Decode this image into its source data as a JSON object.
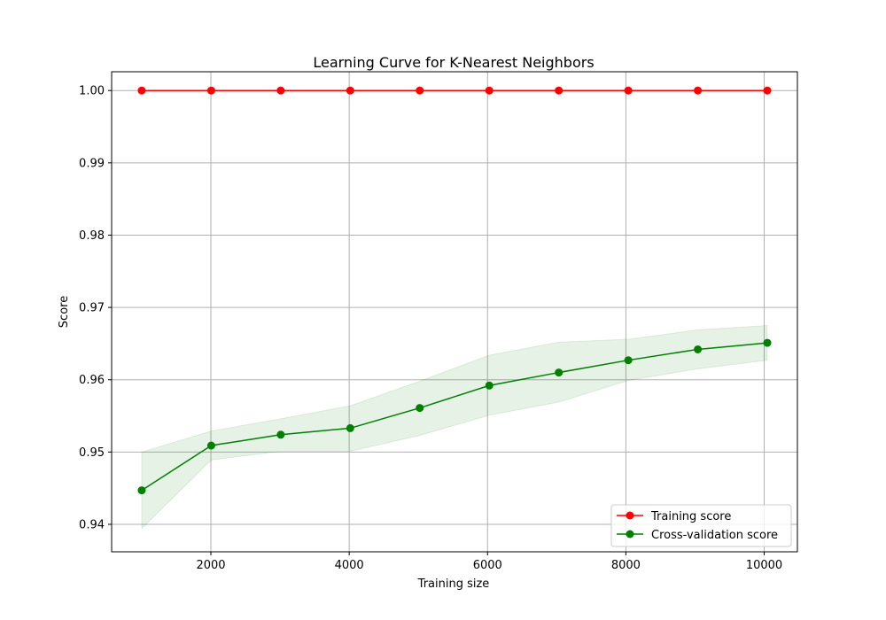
{
  "chart_data": {
    "type": "line",
    "title": "Learning Curve for K-Nearest Neighbors",
    "xlabel": "Training size",
    "ylabel": "Score",
    "x": [
      1000,
      2005,
      3010,
      4015,
      5020,
      6025,
      7030,
      8035,
      9040,
      10045
    ],
    "xlim": [
      565,
      10480
    ],
    "ylim": [
      0.9362,
      1.0026
    ],
    "xticks": [
      2000,
      4000,
      6000,
      8000,
      10000
    ],
    "xtick_labels": [
      "2000",
      "4000",
      "6000",
      "8000",
      "10000"
    ],
    "yticks": [
      0.94,
      0.95,
      0.96,
      0.97,
      0.98,
      0.99,
      1.0
    ],
    "ytick_labels": [
      "0.94",
      "0.95",
      "0.96",
      "0.97",
      "0.98",
      "0.99",
      "1.00"
    ],
    "grid": true,
    "legend_position": "bottom-right",
    "series": [
      {
        "name": "Training score",
        "color": "#ff0000",
        "marker": "circle",
        "values": [
          1.0,
          1.0,
          1.0,
          1.0,
          1.0,
          1.0,
          1.0,
          1.0,
          1.0,
          1.0
        ],
        "band_lower": [
          1.0,
          1.0,
          1.0,
          1.0,
          1.0,
          1.0,
          1.0,
          1.0,
          1.0,
          1.0
        ],
        "band_upper": [
          1.0,
          1.0,
          1.0,
          1.0,
          1.0,
          1.0,
          1.0,
          1.0,
          1.0,
          1.0
        ]
      },
      {
        "name": "Cross-validation score",
        "color": "#008000",
        "band_color": "#008000",
        "marker": "circle",
        "values": [
          0.9447,
          0.9509,
          0.9524,
          0.9533,
          0.9561,
          0.9592,
          0.961,
          0.9627,
          0.9642,
          0.9651
        ],
        "band_lower": [
          0.9394,
          0.9489,
          0.9501,
          0.9501,
          0.9523,
          0.9551,
          0.9569,
          0.9599,
          0.9615,
          0.9627
        ],
        "band_upper": [
          0.95,
          0.9529,
          0.9546,
          0.9564,
          0.9598,
          0.9634,
          0.9652,
          0.9656,
          0.9669,
          0.9675
        ]
      }
    ]
  }
}
